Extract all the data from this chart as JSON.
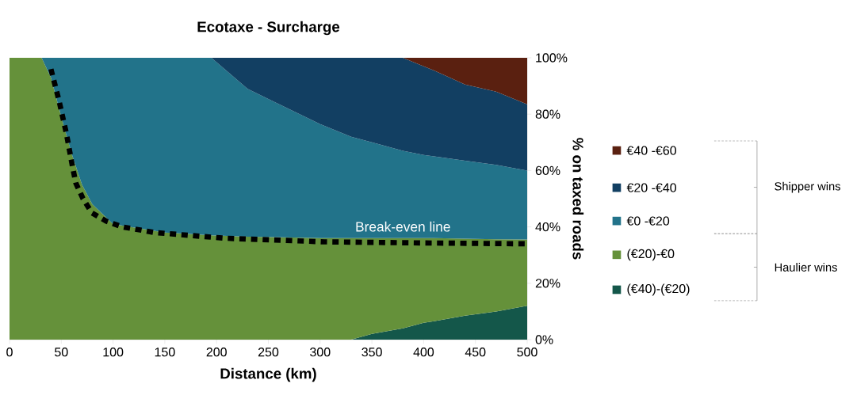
{
  "chart_data": {
    "type": "area",
    "stacked": true,
    "title": "Ecotaxe - Surcharge",
    "xlabel": "Distance (km)",
    "ylabel": "% on taxed roads",
    "x": [
      0,
      31,
      40,
      50,
      60,
      70,
      80,
      100,
      150,
      195,
      230,
      255,
      300,
      330,
      350,
      380,
      400,
      410,
      440,
      470,
      500
    ],
    "series": [
      {
        "name": "(€40)-(€20)",
        "color": "#14574a",
        "values": [
          0,
          0,
          0,
          0,
          0,
          0,
          0,
          0,
          0,
          0,
          0,
          0,
          0,
          0,
          2,
          4,
          6,
          6.5,
          8.5,
          10,
          12
        ]
      },
      {
        "name": "(€20)-€0",
        "color": "#65913a",
        "values": [
          100,
          100,
          93,
          79,
          66,
          55,
          48,
          41,
          38,
          37,
          36.5,
          36.4,
          36,
          36,
          34,
          32,
          30,
          29.5,
          27.3,
          25.6,
          23.5
        ]
      },
      {
        "name": "€0 -€20",
        "color": "#22738a",
        "values": [
          0,
          0,
          7,
          21,
          34,
          45,
          52,
          59,
          62,
          63,
          52.5,
          48.1,
          40.5,
          36,
          34,
          31,
          29.5,
          29,
          27.7,
          26.4,
          24.5
        ]
      },
      {
        "name": "€20 -€40",
        "color": "#123f62",
        "values": [
          0,
          0,
          0,
          0,
          0,
          0,
          0,
          0,
          0,
          0,
          11,
          15.5,
          23.5,
          28,
          30,
          33,
          31.5,
          30.5,
          27,
          26,
          23.5
        ]
      },
      {
        "name": "€40 -€60",
        "color": "#5a2010",
        "values": [
          0,
          0,
          0,
          0,
          0,
          0,
          0,
          0,
          0,
          0,
          0,
          0,
          0,
          0,
          0,
          0,
          3,
          4.5,
          9.5,
          12,
          16.5
        ]
      },
      {
        "name": "Break-even line",
        "type": "line",
        "color": "#000000",
        "line_style": "dotted",
        "x": [
          40,
          48,
          55,
          60.5,
          64,
          71,
          79.5,
          93.5,
          109,
          140,
          207,
          304,
          400,
          500
        ],
        "values": [
          96,
          84.5,
          73,
          62,
          55.6,
          50,
          45,
          42,
          40,
          38,
          36,
          34.7,
          34.3,
          34
        ]
      }
    ],
    "xlim": [
      0,
      500
    ],
    "xticks": [
      0,
      50,
      100,
      150,
      200,
      250,
      300,
      350,
      400,
      450,
      500
    ],
    "ylim": [
      0,
      100
    ],
    "yticks": [
      {
        "value": 0,
        "label": "0%"
      },
      {
        "value": 20,
        "label": "20%"
      },
      {
        "value": 40,
        "label": "40%"
      },
      {
        "value": 60,
        "label": "60%"
      },
      {
        "value": 80,
        "label": "80%"
      },
      {
        "value": 100,
        "label": "100%"
      }
    ],
    "legend": "right",
    "annotations": [
      "Shipper wins",
      "Haulier wins"
    ]
  }
}
